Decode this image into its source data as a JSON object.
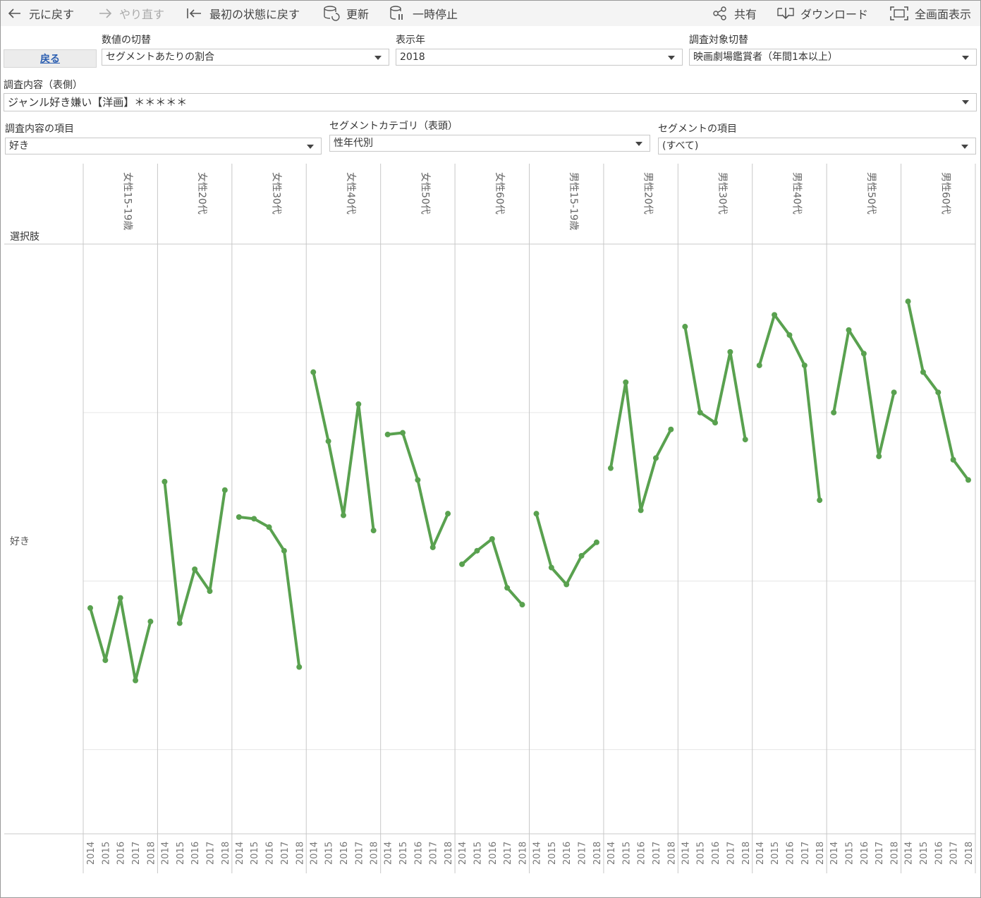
{
  "toolbar": {
    "undo": "元に戻す",
    "redo": "やり直す",
    "revert": "最初の状態に戻す",
    "refresh": "更新",
    "pause": "一時停止",
    "share": "共有",
    "download": "ダウンロード",
    "fullscreen": "全画面表示"
  },
  "back_button": "戻る",
  "filters": {
    "value_switch": {
      "label": "数値の切替",
      "value": "セグメントあたりの割合"
    },
    "display_year": {
      "label": "表示年",
      "value": "2018"
    },
    "target_switch": {
      "label": "調査対象切替",
      "value": "映画劇場鑑賞者（年間1本以上）"
    },
    "survey_content": {
      "label": "調査内容（表側）",
      "value": "ジャンル好き嫌い【洋画】＊＊＊＊＊"
    },
    "survey_item": {
      "label": "調査内容の項目",
      "value": "好き"
    },
    "segment_category": {
      "label": "セグメントカテゴリ（表頭）",
      "value": "性年代別"
    },
    "segment_item": {
      "label": "セグメントの項目",
      "value": "(すべて)"
    }
  },
  "colors": {
    "line": "#59a14f",
    "grid": "#e6e6e6",
    "divider": "#c8c8c8"
  },
  "chart_data": {
    "type": "line",
    "row_header": "選択肢",
    "row_label": "好き",
    "x": [
      "2014",
      "2015",
      "2016",
      "2017",
      "2018"
    ],
    "series": [
      {
        "name": "女性15-19歳",
        "values": [
          0.534,
          0.503,
          0.54,
          0.491,
          0.526
        ]
      },
      {
        "name": "女性20代",
        "values": [
          0.609,
          0.525,
          0.557,
          0.544,
          0.604
        ]
      },
      {
        "name": "女性30代",
        "values": [
          0.588,
          0.587,
          0.582,
          0.568,
          0.499
        ]
      },
      {
        "name": "女性40代",
        "values": [
          0.674,
          0.633,
          0.589,
          0.655,
          0.58
        ]
      },
      {
        "name": "女性50代",
        "values": [
          0.637,
          0.638,
          0.61,
          0.57,
          0.59
        ]
      },
      {
        "name": "女性60代",
        "values": [
          0.56,
          0.568,
          0.575,
          0.546,
          0.536
        ]
      },
      {
        "name": "男性15-19歳",
        "values": [
          0.59,
          0.558,
          0.548,
          0.565,
          0.573
        ]
      },
      {
        "name": "男性20代",
        "values": [
          0.617,
          0.668,
          0.592,
          0.623,
          0.64
        ]
      },
      {
        "name": "男性30代",
        "values": [
          0.701,
          0.65,
          0.644,
          0.686,
          0.634
        ]
      },
      {
        "name": "男性40代",
        "values": [
          0.678,
          0.708,
          0.696,
          0.678,
          0.598
        ]
      },
      {
        "name": "男性50代",
        "values": [
          0.65,
          0.699,
          0.685,
          0.624,
          0.662
        ]
      },
      {
        "name": "男性60代",
        "values": [
          0.716,
          0.674,
          0.662,
          0.622,
          0.61
        ]
      }
    ],
    "ylim": [
      0.4,
      0.75
    ],
    "grid": true
  }
}
